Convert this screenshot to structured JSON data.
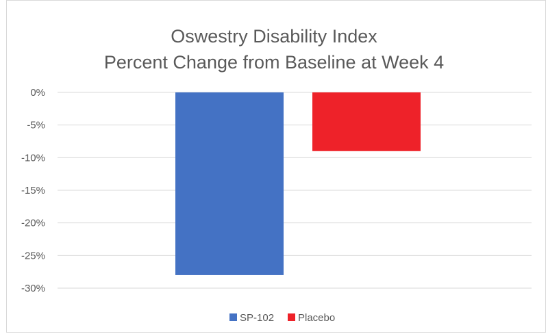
{
  "chart_data": {
    "type": "bar",
    "title_lines": [
      "Oswestry Disability Index",
      "Percent Change from Baseline at Week 4"
    ],
    "series": [
      {
        "name": "SP-102",
        "values": [
          -28
        ],
        "color": "#4472c4"
      },
      {
        "name": "Placebo",
        "values": [
          -9
        ],
        "color": "#ee2229"
      }
    ],
    "categories": [
      ""
    ],
    "xlabel": "",
    "ylabel": "",
    "ylim": [
      -30,
      0
    ],
    "yticks": [
      0,
      -5,
      -10,
      -15,
      -20,
      -25,
      -30
    ],
    "ytick_labels": [
      "0%",
      "-5%",
      "-10%",
      "-15%",
      "-20%",
      "-25%",
      "-30%"
    ],
    "grid": true,
    "legend_position": "bottom"
  }
}
